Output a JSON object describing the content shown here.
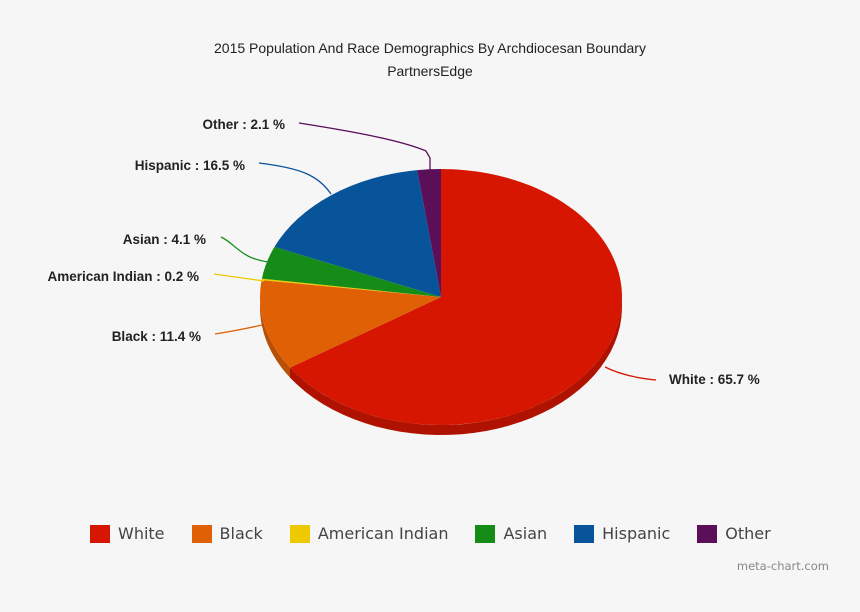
{
  "header": {
    "title": "2015 Population And Race Demographics By Archdiocesan Boundary",
    "subtitle": "PartnersEdge"
  },
  "labels": [
    {
      "text": "White : 65.7 %"
    },
    {
      "text": "Black : 11.4 %"
    },
    {
      "text": "American Indian : 0.2 %"
    },
    {
      "text": "Asian : 4.1 %"
    },
    {
      "text": "Hispanic : 16.5 %"
    },
    {
      "text": "Other : 2.1 %"
    }
  ],
  "legend": [
    {
      "label": "White",
      "color": "#d61600"
    },
    {
      "label": "Black",
      "color": "#e06006"
    },
    {
      "label": "American Indian",
      "color": "#eec900"
    },
    {
      "label": "Asian",
      "color": "#158c18"
    },
    {
      "label": "Hispanic",
      "color": "#07549b"
    },
    {
      "label": "Other",
      "color": "#5c0f59"
    }
  ],
  "credit": "meta-chart.com",
  "chart_data": {
    "type": "pie",
    "title": "2015 Population And Race Demographics By Archdiocesan Boundary",
    "subtitle": "PartnersEdge",
    "categories": [
      "White",
      "Black",
      "American Indian",
      "Asian",
      "Hispanic",
      "Other"
    ],
    "values": [
      65.7,
      11.4,
      0.2,
      4.1,
      16.5,
      2.1
    ],
    "unit": "%",
    "colors": [
      "#d61600",
      "#e06006",
      "#eec900",
      "#158c18",
      "#07549b",
      "#5c0f59"
    ],
    "style": "3d",
    "legend_position": "bottom"
  }
}
